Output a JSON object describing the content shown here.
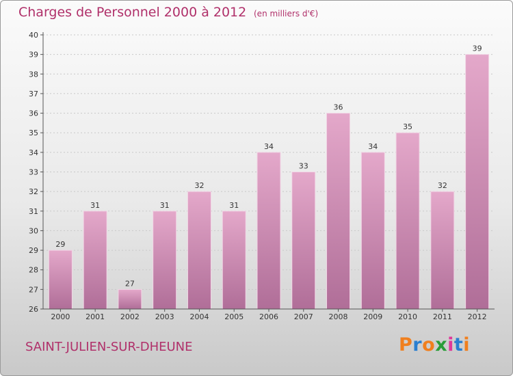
{
  "header": {
    "title": "Charges de Personnel 2000 à 2012",
    "subtitle": "(en milliers d'€)"
  },
  "footer": {
    "commune": "SAINT-JULIEN-SUR-DHEUNE",
    "logo_text": "Proxiti",
    "logo_colors": [
      "#f07f1e",
      "#2a7fd0",
      "#f07f1e",
      "#2a9d38",
      "#e0389a",
      "#2a7fd0",
      "#f07f1e"
    ]
  },
  "chart_data": {
    "type": "bar",
    "title": "Charges de Personnel 2000 à 2012",
    "subtitle": "(en milliers d'€)",
    "categories": [
      "2000",
      "2001",
      "2002",
      "2003",
      "2004",
      "2005",
      "2006",
      "2007",
      "2008",
      "2009",
      "2010",
      "2011",
      "2012"
    ],
    "values": [
      29,
      31,
      27,
      31,
      32,
      31,
      34,
      33,
      36,
      34,
      35,
      32,
      39
    ],
    "ylim": [
      26,
      40
    ],
    "yticks": [
      26,
      27,
      28,
      29,
      30,
      31,
      32,
      33,
      34,
      35,
      36,
      37,
      38,
      39,
      40
    ],
    "grid": true,
    "colors": {
      "bar_top": "#e4a8ca",
      "bar_bottom": "#b06e98",
      "bar_edge": "#f2d6e6",
      "title": "#b0306a"
    }
  }
}
